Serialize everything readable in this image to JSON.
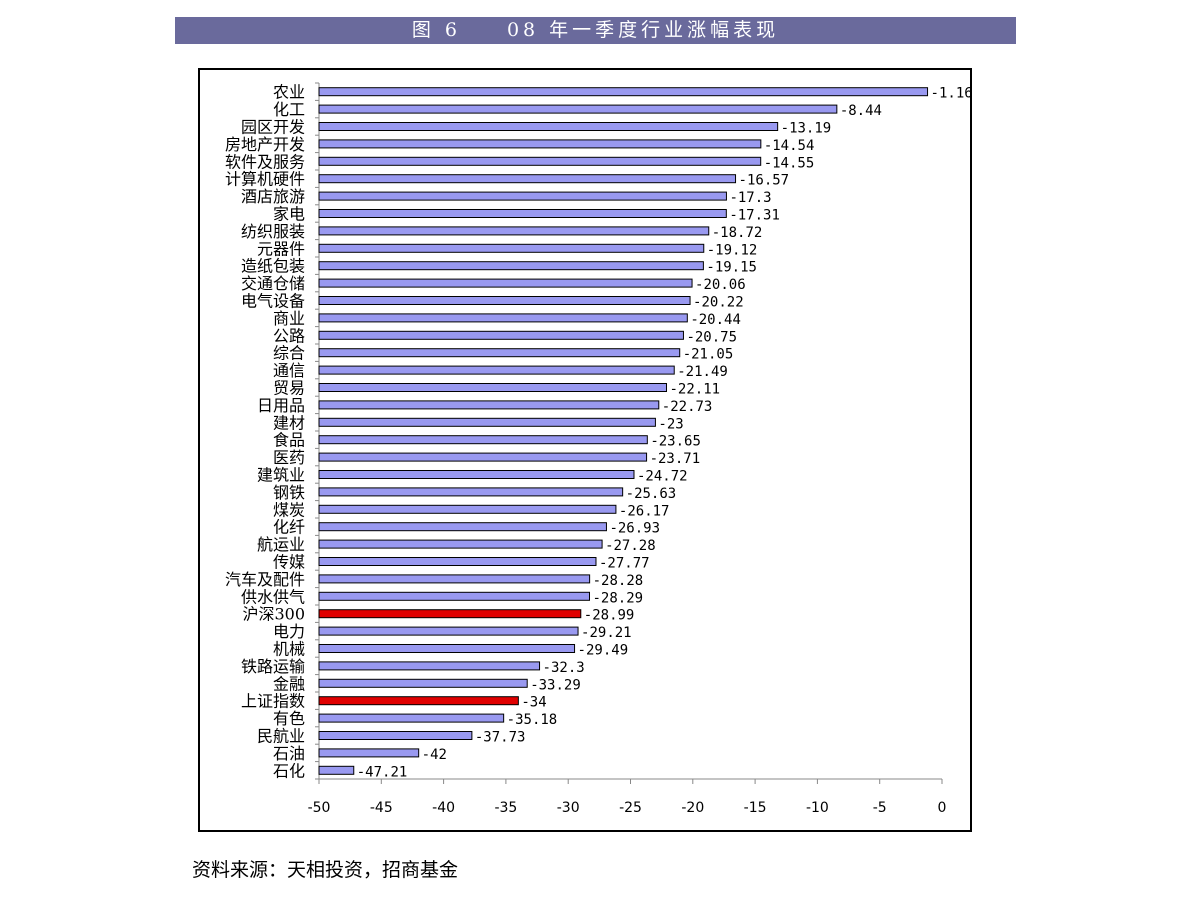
{
  "header": {
    "title": "图 6　　08 年一季度行业涨幅表现"
  },
  "source_note": "资料来源：天相投资，招商基金",
  "colors": {
    "title_bg": "#6a6a9c",
    "bar_fill": "#9999f0",
    "highlight_fill": "#e00000",
    "bar_stroke": "#000000"
  },
  "chart_data": {
    "type": "bar",
    "orientation": "horizontal",
    "xlim": [
      -50,
      0
    ],
    "xticks": [
      -50,
      -45,
      -40,
      -35,
      -30,
      -25,
      -20,
      -15,
      -10,
      -5,
      0
    ],
    "grid": false,
    "legend": "none",
    "categories": [
      "农业",
      "化工",
      "园区开发",
      "房地产开发",
      "软件及服务",
      "计算机硬件",
      "酒店旅游",
      "家电",
      "纺织服装",
      "元器件",
      "造纸包装",
      "交通仓储",
      "电气设备",
      "商业",
      "公路",
      "综合",
      "通信",
      "贸易",
      "日用品",
      "建材",
      "食品",
      "医药",
      "建筑业",
      "钢铁",
      "煤炭",
      "化纤",
      "航运业",
      "传媒",
      "汽车及配件",
      "供水供气",
      "沪深300",
      "电力",
      "机械",
      "铁路运输",
      "金融",
      "上证指数",
      "有色",
      "民航业",
      "石油",
      "石化"
    ],
    "values": [
      -1.16,
      -8.44,
      -13.19,
      -14.54,
      -14.55,
      -16.57,
      -17.3,
      -17.31,
      -18.72,
      -19.12,
      -19.15,
      -20.06,
      -20.22,
      -20.44,
      -20.75,
      -21.05,
      -21.49,
      -22.11,
      -22.73,
      -23,
      -23.65,
      -23.71,
      -24.72,
      -25.63,
      -26.17,
      -26.93,
      -27.28,
      -27.77,
      -28.28,
      -28.29,
      -28.99,
      -29.21,
      -29.49,
      -32.3,
      -33.29,
      -34,
      -35.18,
      -37.73,
      -42,
      -47.21
    ],
    "data_labels": [
      "-1.16",
      "-8.44",
      "-13.19",
      "-14.54",
      "-14.55",
      "-16.57",
      "-17.3",
      "-17.31",
      "-18.72",
      "-19.12",
      "-19.15",
      "-20.06",
      "-20.22",
      "-20.44",
      "-20.75",
      "-21.05",
      "-21.49",
      "-22.11",
      "-22.73",
      "-23",
      "-23.65",
      "-23.71",
      "-24.72",
      "-25.63",
      "-26.17",
      "-26.93",
      "-27.28",
      "-27.77",
      "-28.28",
      "-28.29",
      "-28.99",
      "-29.21",
      "-29.49",
      "-32.3",
      "-33.29",
      "-34",
      "-35.18",
      "-37.73",
      "-42",
      "-47.21"
    ],
    "highlighted": [
      "沪深300",
      "上证指数"
    ]
  }
}
